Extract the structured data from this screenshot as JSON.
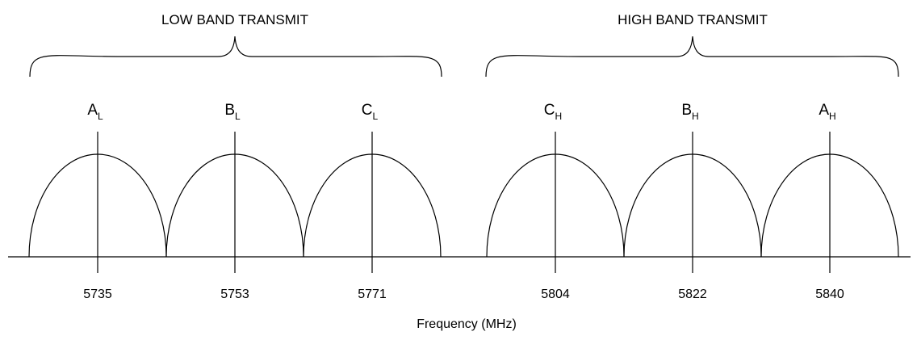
{
  "bands": [
    {
      "title": "LOW BAND TRANSMIT"
    },
    {
      "title": "HIGH BAND TRANSMIT"
    }
  ],
  "channels": [
    {
      "letter": "A",
      "sub": "L",
      "freq": "5735"
    },
    {
      "letter": "B",
      "sub": "L",
      "freq": "5753"
    },
    {
      "letter": "C",
      "sub": "L",
      "freq": "5771"
    },
    {
      "letter": "C",
      "sub": "H",
      "freq": "5804"
    },
    {
      "letter": "B",
      "sub": "H",
      "freq": "5822"
    },
    {
      "letter": "A",
      "sub": "H",
      "freq": "5840"
    }
  ],
  "axis": {
    "label": "Frequency (MHz)"
  }
}
